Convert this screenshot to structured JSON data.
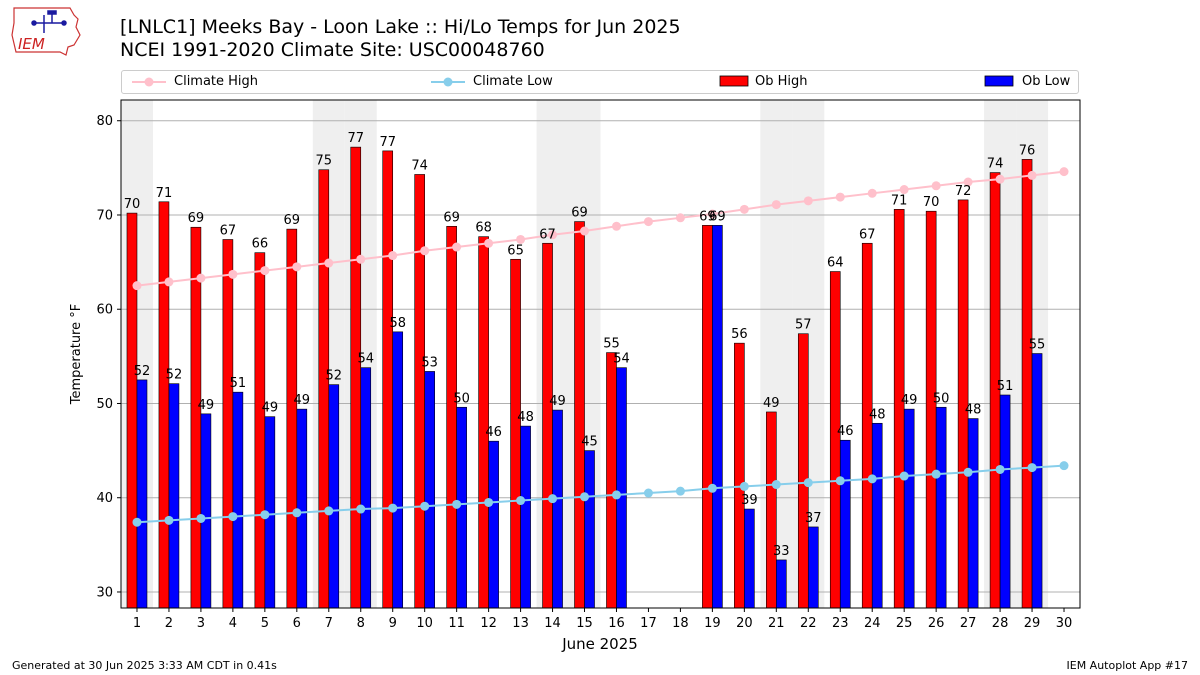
{
  "header": {
    "title_line1": "[LNLC1] Meeks Bay - Loon Lake :: Hi/Lo Temps for Jun 2025",
    "title_line2": "NCEI 1991-2020 Climate Site: USC00048760",
    "logo_text": "IEM"
  },
  "legend": {
    "position": "top",
    "items": [
      {
        "label": "Climate High",
        "icon": "line-marker-icon",
        "color": "#ffc0cb"
      },
      {
        "label": "Climate Low",
        "icon": "line-marker-icon",
        "color": "#87ceeb"
      },
      {
        "label": "Ob High",
        "icon": "bar-swatch-icon",
        "color": "#ff0000"
      },
      {
        "label": "Ob Low",
        "icon": "bar-swatch-icon",
        "color": "#0000ff"
      }
    ]
  },
  "footer": {
    "left": "Generated at 30 Jun 2025 3:33 AM CDT in 0.41s",
    "right": "IEM Autoplot App #17"
  },
  "chart_data": {
    "type": "bar",
    "xlabel": "June 2025",
    "ylabel": "Temperature °F",
    "ylim": [
      28.3,
      82.2
    ],
    "yticks": [
      30,
      40,
      50,
      60,
      70,
      80
    ],
    "grid": "horizontal",
    "weekend_shading": true,
    "shaded_days": [
      1,
      7,
      8,
      14,
      15,
      21,
      22,
      28,
      29
    ],
    "categories": [
      "1",
      "2",
      "3",
      "4",
      "5",
      "6",
      "7",
      "8",
      "9",
      "10",
      "11",
      "12",
      "13",
      "14",
      "15",
      "16",
      "17",
      "18",
      "19",
      "20",
      "21",
      "22",
      "23",
      "24",
      "25",
      "26",
      "27",
      "28",
      "29",
      "30"
    ],
    "series": [
      {
        "name": "Ob High",
        "kind": "bar",
        "color": "#ff0000",
        "values": [
          70.2,
          71.4,
          68.7,
          67.4,
          66.0,
          68.5,
          74.8,
          77.2,
          76.8,
          74.3,
          68.8,
          67.7,
          65.3,
          67.0,
          69.3,
          55.4,
          null,
          null,
          68.9,
          56.4,
          49.1,
          57.4,
          64.0,
          67.0,
          70.6,
          70.4,
          71.6,
          74.5,
          75.9,
          null
        ],
        "labels": [
          "70",
          "71",
          "69",
          "67",
          "66",
          "69",
          "75",
          "77",
          "77",
          "74",
          "69",
          "68",
          "65",
          "67",
          "69",
          "55",
          "",
          "",
          "69",
          "56",
          "49",
          "57",
          "64",
          "67",
          "71",
          "70",
          "72",
          "74",
          "76",
          ""
        ]
      },
      {
        "name": "Ob Low",
        "kind": "bar",
        "color": "#0000ff",
        "values": [
          52.5,
          52.1,
          48.9,
          51.2,
          48.6,
          49.4,
          52.0,
          53.8,
          57.6,
          53.4,
          49.6,
          46.0,
          47.6,
          49.3,
          45.0,
          53.8,
          null,
          null,
          68.9,
          38.8,
          33.4,
          36.9,
          46.1,
          47.9,
          49.4,
          49.6,
          48.4,
          50.9,
          55.3,
          null
        ],
        "labels": [
          "52",
          "52",
          "49",
          "51",
          "49",
          "49",
          "52",
          "54",
          "58",
          "53",
          "50",
          "46",
          "48",
          "49",
          "45",
          "54",
          "",
          "",
          "69",
          "39",
          "33",
          "37",
          "46",
          "48",
          "49",
          "50",
          "48",
          "51",
          "55",
          ""
        ]
      },
      {
        "name": "Climate High",
        "kind": "line",
        "color": "#ffc0cb",
        "values": [
          62.5,
          62.9,
          63.3,
          63.7,
          64.1,
          64.5,
          64.9,
          65.3,
          65.7,
          66.2,
          66.6,
          67.0,
          67.4,
          67.9,
          68.3,
          68.8,
          69.3,
          69.7,
          70.1,
          70.6,
          71.1,
          71.5,
          71.9,
          72.3,
          72.7,
          73.1,
          73.5,
          73.8,
          74.2,
          74.6
        ]
      },
      {
        "name": "Climate Low",
        "kind": "line",
        "color": "#87ceeb",
        "values": [
          37.4,
          37.6,
          37.8,
          38.0,
          38.2,
          38.4,
          38.6,
          38.8,
          38.9,
          39.1,
          39.3,
          39.5,
          39.7,
          39.9,
          40.1,
          40.3,
          40.5,
          40.7,
          41.0,
          41.2,
          41.4,
          41.6,
          41.8,
          42.0,
          42.3,
          42.5,
          42.7,
          43.0,
          43.2,
          43.4
        ]
      }
    ]
  }
}
